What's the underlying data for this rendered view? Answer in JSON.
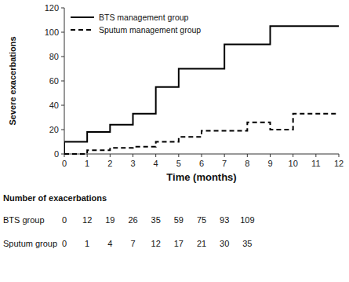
{
  "chart_data": {
    "type": "line",
    "xlabel": "Time (months)",
    "ylabel": "Severe exacerbations",
    "xlim": [
      0,
      12
    ],
    "ylim": [
      0,
      120
    ],
    "xticks": [
      0,
      1,
      2,
      3,
      4,
      5,
      6,
      7,
      8,
      9,
      10,
      11,
      12
    ],
    "yticks": [
      0,
      20,
      40,
      60,
      80,
      100,
      120
    ],
    "grid": false,
    "legend": "upper left",
    "x": [
      0,
      0,
      1,
      1,
      2,
      2,
      3,
      3,
      4,
      4,
      5,
      5,
      6,
      6,
      7,
      7,
      8,
      8,
      9,
      9,
      10,
      10,
      12
    ],
    "series": [
      {
        "name": "BTS management group",
        "color": "#000000",
        "line_style": "solid",
        "values": [
          0,
          10,
          10,
          18,
          18,
          24,
          24,
          33,
          33,
          55,
          55,
          70,
          70,
          70,
          70,
          90,
          90,
          90,
          90,
          105,
          105,
          105,
          105
        ]
      },
      {
        "name": "Sputum management group",
        "color": "#000000",
        "line_style": "dashed",
        "values": [
          0,
          0,
          0,
          3,
          3,
          5,
          5,
          6,
          6,
          10,
          10,
          14,
          14,
          19,
          19,
          19,
          19,
          26,
          26,
          20,
          20,
          33,
          33
        ]
      }
    ],
    "table": {
      "title": "Number of exacerbations",
      "rows": [
        {
          "name": "BTS group",
          "values": [
            0,
            12,
            19,
            26,
            35,
            59,
            75,
            93,
            109
          ]
        },
        {
          "name": "Sputum group",
          "values": [
            0,
            1,
            4,
            7,
            12,
            17,
            21,
            30,
            35
          ]
        }
      ]
    }
  }
}
